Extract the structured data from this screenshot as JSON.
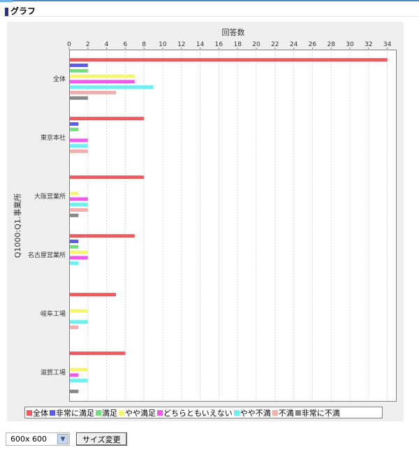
{
  "section": {
    "title": "グラフ"
  },
  "colors": {
    "page_top_line": "#4f86c6",
    "section_marker": "#2b2f8f",
    "chart_background": "#efefef",
    "plot_background": "#ffffff"
  },
  "chart_data": {
    "type": "bar",
    "orientation": "horizontal",
    "title": "",
    "xlabel": "回答数",
    "ylabel": "Q1000:Q1.事業所",
    "xlim": [
      0,
      35
    ],
    "x_ticks": [
      0,
      2,
      4,
      6,
      8,
      10,
      12,
      14,
      16,
      18,
      20,
      22,
      24,
      26,
      28,
      30,
      32,
      34
    ],
    "x_axis_position": "top",
    "grid": true,
    "legend_position": "bottom",
    "categories": [
      "全体",
      "東京本社",
      "大阪営業所",
      "名古屋営業所",
      "岐阜工場",
      "滋賀工場"
    ],
    "series": [
      {
        "name": "全体",
        "color": "#f05a5e",
        "values": [
          34,
          8,
          8,
          7,
          5,
          6
        ]
      },
      {
        "name": "非常に満足",
        "color": "#5b5bf0",
        "values": [
          2,
          1,
          0,
          1,
          0,
          0
        ]
      },
      {
        "name": "満足",
        "color": "#6ee27a",
        "values": [
          2,
          1,
          0,
          1,
          0,
          0
        ]
      },
      {
        "name": "やや満足",
        "color": "#f5f56e",
        "values": [
          7,
          0,
          1,
          2,
          2,
          2
        ]
      },
      {
        "name": "どちらともいえない",
        "color": "#ee5aee",
        "values": [
          7,
          2,
          2,
          2,
          0,
          1
        ]
      },
      {
        "name": "やや不満",
        "color": "#6ef0f0",
        "values": [
          9,
          2,
          2,
          1,
          2,
          2
        ]
      },
      {
        "name": "不満",
        "color": "#f0b0b0",
        "values": [
          5,
          2,
          2,
          0,
          1,
          0
        ]
      },
      {
        "name": "非常に不満",
        "color": "#888888",
        "values": [
          2,
          0,
          1,
          0,
          0,
          1
        ]
      }
    ]
  },
  "controls": {
    "size_select_value": "600x 600",
    "resize_button_label": "サイズ変更"
  }
}
